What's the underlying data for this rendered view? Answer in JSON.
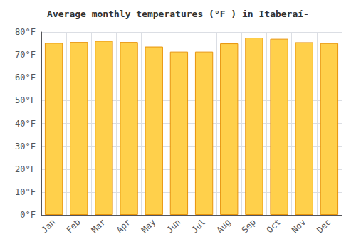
{
  "chart_data": {
    "type": "bar",
    "title": "Average monthly temperatures (°F ) in Itaberaí-",
    "categories": [
      "Jan",
      "Feb",
      "Mar",
      "Apr",
      "May",
      "Jun",
      "Jul",
      "Aug",
      "Sep",
      "Oct",
      "Nov",
      "Dec"
    ],
    "values": [
      75.2,
      75.6,
      76.1,
      75.6,
      73.6,
      71.4,
      71.4,
      75.0,
      77.5,
      77.0,
      75.5,
      75.1
    ],
    "color": "#FFD04B",
    "ylim": [
      0,
      80
    ],
    "yticks": [
      {
        "value": 0,
        "label": "0°F"
      },
      {
        "value": 10,
        "label": "10°F"
      },
      {
        "value": 20,
        "label": "20°F"
      },
      {
        "value": 30,
        "label": "30°F"
      },
      {
        "value": 40,
        "label": "40°F"
      },
      {
        "value": 50,
        "label": "50°F"
      },
      {
        "value": 60,
        "label": "60°F"
      },
      {
        "value": 70,
        "label": "70°F"
      },
      {
        "value": 80,
        "label": "80°F"
      }
    ],
    "grid": true
  }
}
